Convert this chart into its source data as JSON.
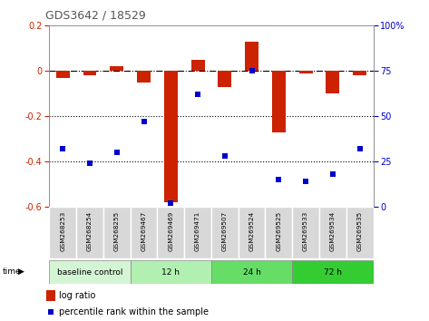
{
  "title": "GDS3642 / 18529",
  "samples": [
    "GSM268253",
    "GSM268254",
    "GSM268255",
    "GSM269467",
    "GSM269469",
    "GSM269471",
    "GSM269507",
    "GSM269524",
    "GSM269525",
    "GSM269533",
    "GSM269534",
    "GSM269535"
  ],
  "log_ratio": [
    -0.03,
    -0.02,
    0.02,
    -0.05,
    -0.58,
    0.05,
    -0.07,
    0.13,
    -0.27,
    -0.01,
    -0.1,
    -0.02
  ],
  "percentile_rank": [
    32,
    24,
    30,
    47,
    2,
    62,
    28,
    75,
    15,
    14,
    18,
    32
  ],
  "groups": [
    {
      "label": "baseline control",
      "start": 0,
      "end": 3
    },
    {
      "label": "12 h",
      "start": 3,
      "end": 6
    },
    {
      "label": "24 h",
      "start": 6,
      "end": 9
    },
    {
      "label": "72 h",
      "start": 9,
      "end": 12
    }
  ],
  "group_colors": [
    "#d4f5d4",
    "#b2f0b2",
    "#66dd66",
    "#33cc33"
  ],
  "ylim_left": [
    -0.6,
    0.2
  ],
  "ylim_right": [
    0,
    100
  ],
  "yticks_left": [
    -0.6,
    -0.4,
    -0.2,
    0.0,
    0.2
  ],
  "yticks_right": [
    0,
    25,
    50,
    75,
    100
  ],
  "dotted_lines": [
    -0.2,
    -0.4
  ],
  "bar_color": "#cc2200",
  "scatter_color": "#0000cc",
  "bar_width": 0.5,
  "title_color": "#555555",
  "left_tick_color": "#cc2200",
  "right_tick_color": "#0000cc",
  "label_bg_color": "#d8d8d8",
  "label_border_color": "#ffffff"
}
